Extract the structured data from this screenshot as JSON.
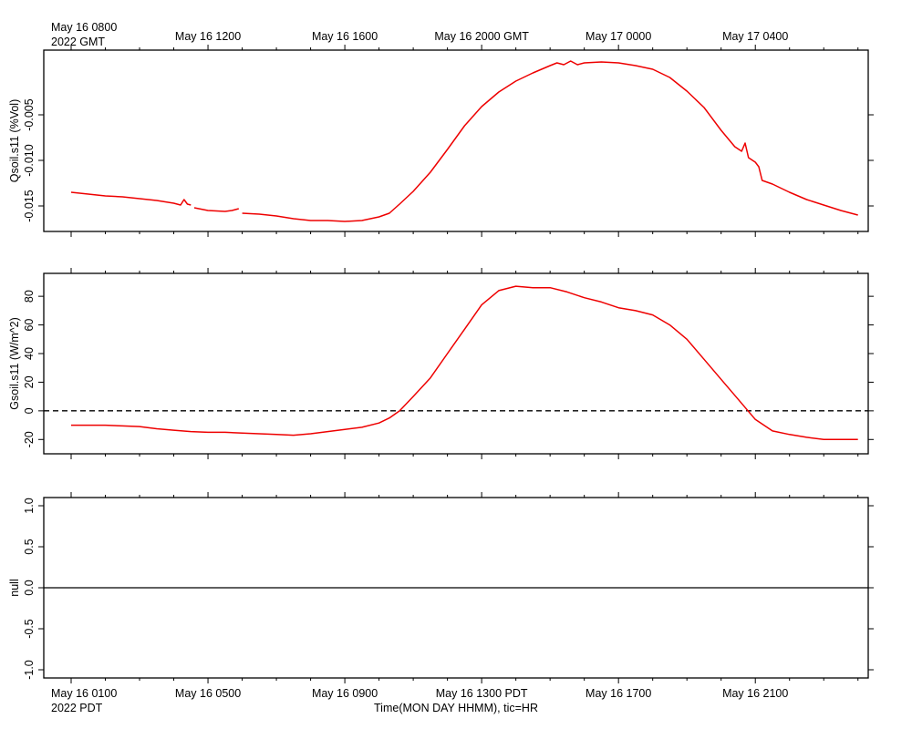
{
  "top_axis": {
    "first_label": "May 16 0800",
    "first_year_label": "2022 GMT",
    "labels": [
      "May 16 1200",
      "May 16 1600",
      "May 16 2000 GMT",
      "May 17 0000",
      "May 17 0400"
    ]
  },
  "bottom_axis": {
    "first_label": "May 16 0100",
    "first_year_label": "2022 PDT",
    "labels": [
      "May 16 0500",
      "May 16 0900",
      "May 16 1300 PDT",
      "May 16 1700",
      "May 16 2100"
    ],
    "xlabel": "Time(MON DAY HHMM), tic=HR"
  },
  "colors": {
    "series": "#ee0000",
    "axes": "#000000",
    "reference": "#000000"
  },
  "chart_data": [
    {
      "type": "line",
      "ylabel": "Qsoil.s11 (%Vol)",
      "ylim": [
        -0.0178,
        0.0021
      ],
      "yticks": [
        -0.015,
        -0.01,
        -0.005
      ],
      "ytick_labels": [
        "-0.015",
        "-0.010",
        "-0.005"
      ],
      "x_unit": "hours since May 16 0100 PDT",
      "xlim": [
        -0.8,
        23.3
      ],
      "grid": false,
      "series": [
        {
          "x": [
            0.0,
            0.5,
            1.0,
            1.5,
            2.0,
            2.5,
            3.0,
            3.2,
            3.3,
            3.4,
            3.5,
            3.6,
            4.0,
            4.5,
            4.7,
            4.9,
            5.0,
            5.5,
            6.0,
            6.5,
            7.0,
            7.5,
            8.0,
            8.5,
            9.0,
            9.3,
            9.6,
            10.0,
            10.5,
            11.0,
            11.5,
            12.0,
            12.5,
            13.0,
            13.5,
            14.0,
            14.2,
            14.4,
            14.6,
            14.8,
            15.0,
            15.5,
            16.0,
            16.5,
            17.0,
            17.5,
            18.0,
            18.5,
            19.0,
            19.4,
            19.6,
            19.7,
            19.8,
            20.0,
            20.1,
            20.2,
            20.5,
            21.0,
            21.5,
            22.0,
            22.5,
            23.0
          ],
          "y": [
            -0.0135,
            -0.0137,
            -0.0139,
            -0.014,
            -0.0142,
            -0.0144,
            -0.0147,
            -0.0149,
            -0.0143,
            -0.0148,
            -0.0149,
            -0.0152,
            -0.0155,
            -0.0156,
            -0.0155,
            -0.0153,
            -0.0158,
            -0.0159,
            -0.0161,
            -0.0164,
            -0.0166,
            -0.0166,
            -0.0167,
            -0.0166,
            -0.0162,
            -0.0158,
            -0.0148,
            -0.0134,
            -0.0113,
            -0.0088,
            -0.0062,
            -0.0041,
            -0.0025,
            -0.0013,
            -0.0004,
            0.0004,
            0.0007,
            0.0005,
            0.0009,
            0.0005,
            0.0007,
            0.0008,
            0.0007,
            0.0004,
            0.0,
            -0.0009,
            -0.0024,
            -0.0042,
            -0.0067,
            -0.0085,
            -0.009,
            -0.0081,
            -0.0097,
            -0.0102,
            -0.0107,
            -0.0122,
            -0.0126,
            -0.0135,
            -0.0143,
            -0.0149,
            -0.0155,
            -0.016
          ],
          "gaps": [
            [
              3.5,
              3.6
            ],
            [
              4.9,
              5.0
            ],
            [
              6.6,
              6.9
            ],
            [
              8.5,
              8.6
            ],
            [
              10.5,
              10.6
            ],
            [
              15.4,
              15.5
            ],
            [
              16.7,
              16.8
            ],
            [
              17.3,
              17.4
            ],
            [
              22.2,
              22.3
            ]
          ]
        }
      ]
    },
    {
      "type": "line",
      "ylabel": "Gsoil.s11 (W/m^2)",
      "ylim": [
        -30,
        96
      ],
      "yticks": [
        -20,
        0,
        20,
        40,
        60,
        80
      ],
      "ytick_labels": [
        "-20",
        "0",
        "20",
        "40",
        "60",
        "80"
      ],
      "x_unit": "hours since May 16 0100 PDT",
      "xlim": [
        -0.8,
        23.3
      ],
      "grid": false,
      "reference_line": {
        "y": 0,
        "style": "dashed"
      },
      "series": [
        {
          "x": [
            0.0,
            0.5,
            1.0,
            1.5,
            2.0,
            2.5,
            3.0,
            3.5,
            4.0,
            4.5,
            5.0,
            5.5,
            6.0,
            6.5,
            7.0,
            7.5,
            8.0,
            8.5,
            9.0,
            9.3,
            9.6,
            10.0,
            10.5,
            11.0,
            11.5,
            12.0,
            12.5,
            13.0,
            13.5,
            14.0,
            14.5,
            15.0,
            15.5,
            16.0,
            16.5,
            17.0,
            17.5,
            18.0,
            18.5,
            19.0,
            19.5,
            20.0,
            20.5,
            21.0,
            21.5,
            22.0,
            22.5,
            23.0
          ],
          "y": [
            -10,
            -10,
            -10,
            -10.5,
            -11,
            -12.5,
            -13.5,
            -14.5,
            -15,
            -15,
            -15.5,
            -16,
            -16.5,
            -17,
            -16,
            -14.5,
            -13,
            -11.5,
            -8.5,
            -5,
            0,
            10,
            23,
            40,
            57,
            74,
            84,
            87,
            86,
            86,
            83,
            79,
            76,
            72,
            70,
            67,
            60,
            50,
            36,
            22,
            8,
            -6,
            -14,
            -16.5,
            -18.5,
            -20,
            -20,
            -20
          ],
          "gaps": [
            [
              4.4,
              4.5
            ],
            [
              5.0,
              5.1
            ],
            [
              6.7,
              7.0
            ],
            [
              8.6,
              8.7
            ],
            [
              10.5,
              10.6
            ],
            [
              15.8,
              15.9
            ],
            [
              17.3,
              17.4
            ],
            [
              22.2,
              22.3
            ]
          ]
        }
      ]
    },
    {
      "type": "line",
      "ylabel": "null",
      "ylim": [
        -1.1,
        1.1
      ],
      "yticks": [
        -1.0,
        -0.5,
        0.0,
        0.5,
        1.0
      ],
      "ytick_labels": [
        "-1.0",
        "-0.5",
        "0.0",
        "0.5",
        "1.0"
      ],
      "x_unit": "hours since May 16 0100 PDT",
      "xlim": [
        -0.8,
        23.3
      ],
      "grid": false,
      "series": [
        {
          "x": [
            -0.8,
            23.3
          ],
          "y": [
            0,
            0
          ]
        }
      ]
    }
  ]
}
